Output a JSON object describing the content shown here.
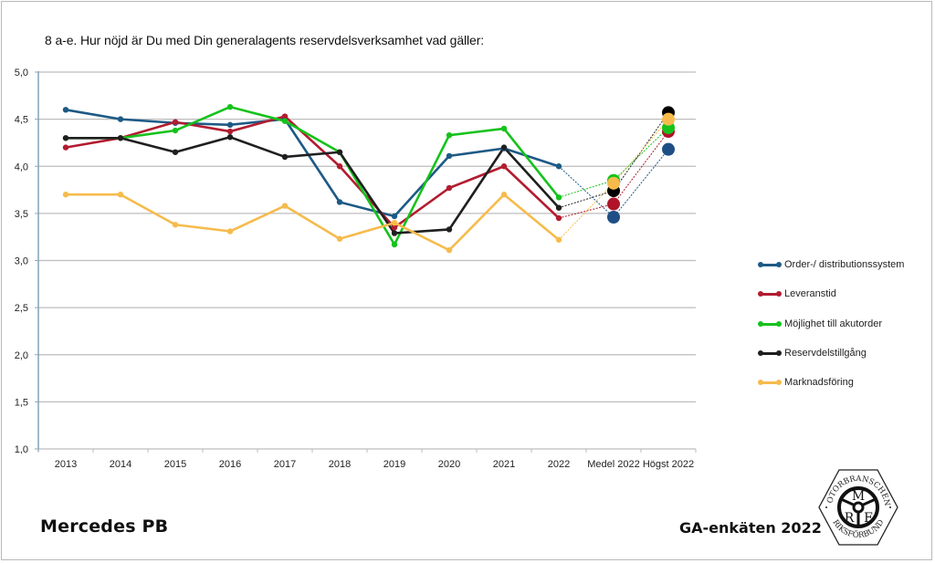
{
  "page": {
    "title": "8 a-e. Hur nöjd är Du med Din generalagents reservdelsverksamhet vad gäller:",
    "brand": "Mercedes PB",
    "survey_label": "GA-enkäten 2022",
    "logo": {
      "top_text": "MOTORBRANSCHENS",
      "bottom_text": "RIKSFÖRBUND",
      "letters": [
        "M",
        "R",
        "F"
      ]
    }
  },
  "chart_data": {
    "type": "line",
    "title": "8 a-e. Hur nöjd är Du med Din generalagents reservdelsverksamhet vad gäller:",
    "xlabel": "",
    "ylabel": "",
    "ylim": [
      1.0,
      5.0
    ],
    "yticks": [
      "1,0",
      "1,5",
      "2,0",
      "2,5",
      "3,0",
      "3,5",
      "4,0",
      "4,5",
      "5,0"
    ],
    "ytick_values": [
      1.0,
      1.5,
      2.0,
      2.5,
      3.0,
      3.5,
      4.0,
      4.5,
      5.0
    ],
    "grid": true,
    "legend_position": "right",
    "categories": [
      "2013",
      "2014",
      "2015",
      "2016",
      "2017",
      "2018",
      "2019",
      "2020",
      "2021",
      "2022",
      "Medel 2022",
      "Högst 2022"
    ],
    "solid_range_note": "2013–2022 solid lines; Medel 2022 and Högst 2022 shown as large markers joined by dotted lines",
    "series": [
      {
        "name": "Order-/ distributionssystem",
        "color": "#1d5a85",
        "marker_color": "#1f4e85",
        "values": [
          4.6,
          4.5,
          4.46,
          4.44,
          4.5,
          3.62,
          3.47,
          4.11,
          4.19,
          4.0,
          3.46,
          4.18
        ]
      },
      {
        "name": "Leveranstid",
        "color": "#b21c30",
        "marker_color": "#b01428",
        "values": [
          4.2,
          4.3,
          4.47,
          4.37,
          4.53,
          4.0,
          3.35,
          3.77,
          4.0,
          3.45,
          3.6,
          4.37
        ]
      },
      {
        "name": "Möjlighet till akutorder",
        "color": "#16c21c",
        "marker_color": "#16c21c",
        "values": [
          4.3,
          4.3,
          4.38,
          4.63,
          4.48,
          4.15,
          3.17,
          4.33,
          4.4,
          3.67,
          3.85,
          4.41
        ]
      },
      {
        "name": "Reservdelstillgång",
        "color": "#1f1f1f",
        "marker_color": "#000000",
        "values": [
          4.3,
          4.3,
          4.15,
          4.31,
          4.1,
          4.15,
          3.29,
          3.33,
          4.2,
          3.56,
          3.74,
          4.57
        ]
      },
      {
        "name": "Marknadsföring",
        "color": "#f6bb4c",
        "marker_color": "#f6bb4c",
        "values": [
          3.7,
          3.7,
          3.38,
          3.31,
          3.58,
          3.23,
          3.4,
          3.11,
          3.7,
          3.22,
          3.82,
          4.5
        ]
      }
    ]
  }
}
